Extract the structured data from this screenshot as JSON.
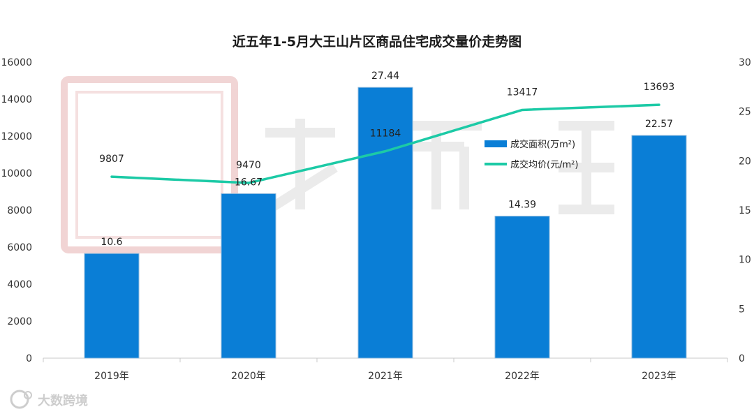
{
  "chart_data": {
    "type": "bar+line",
    "title": "近五年1-5月大王山片区商品住宅成交量价走势图",
    "categories": [
      "2019年",
      "2020年",
      "2021年",
      "2022年",
      "2023年"
    ],
    "series": [
      {
        "name": "成交面积(万m²)",
        "type": "bar",
        "axis": "right",
        "values": [
          10.6,
          16.67,
          27.44,
          14.39,
          22.57
        ],
        "labels": [
          "10.6",
          "16.67",
          "27.44",
          "14.39",
          "22.57"
        ],
        "color": "#0a7ed6"
      },
      {
        "name": "成交均价(元/m²)",
        "type": "line",
        "axis": "left",
        "values": [
          9807,
          9470,
          11184,
          13417,
          13693
        ],
        "labels": [
          "9807",
          "9470",
          "11184",
          "13417",
          "13693"
        ],
        "color": "#1ccaa6"
      }
    ],
    "y_left": {
      "range": [
        0,
        16000
      ],
      "ticks": [
        "0",
        "2000",
        "4000",
        "6000",
        "8000",
        "10000",
        "12000",
        "14000",
        "16000"
      ]
    },
    "y_right": {
      "range": [
        0,
        30
      ],
      "ticks": [
        "0",
        "5",
        "10",
        "15",
        "20",
        "25",
        "30"
      ]
    },
    "legend_position": "upper-right, inside plot",
    "grid": false
  },
  "watermark": {
    "brand_text": "大数跨境"
  },
  "colors": {
    "bar": "#0a7ed6",
    "line": "#1ccaa6",
    "background": "#ffffff",
    "axis": "#cccccc"
  }
}
